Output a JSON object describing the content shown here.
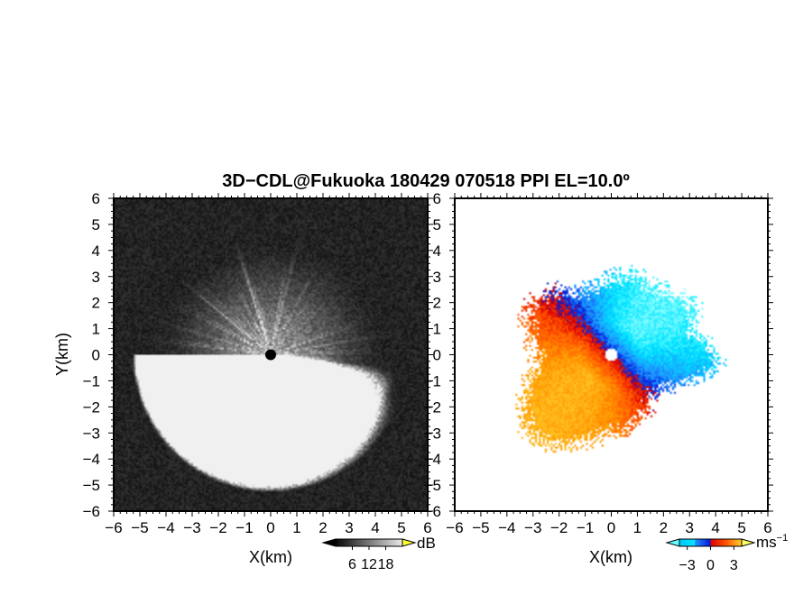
{
  "title": "3D−CDL@Fukuoka 180429 070518 PPI EL=10.0º",
  "chart_data": [
    {
      "type": "heatmap",
      "panel": "reflectivity",
      "xlabel": "X(km)",
      "ylabel": "Y(km)",
      "xlim": [
        -6,
        6
      ],
      "ylim": [
        -6,
        6
      ],
      "xticks": [
        "−6",
        "−5",
        "−4",
        "−3",
        "−2",
        "−1",
        "0",
        "1",
        "2",
        "3",
        "4",
        "5",
        "6"
      ],
      "yticks": [
        "−6",
        "−5",
        "−4",
        "−3",
        "−2",
        "−1",
        "0",
        "1",
        "2",
        "3",
        "4",
        "5",
        "6"
      ],
      "colorbar": {
        "unit": "dB",
        "ticks": [
          "6",
          "12",
          "18"
        ],
        "tick_values": [
          6,
          12,
          18
        ],
        "range": [
          0,
          24
        ],
        "colormap": "greyscale",
        "extend_low_color": "#000000",
        "extend_high_color": "#ffff33"
      },
      "field": {
        "background_color": "#141414",
        "peak_color": "#f0f0f0",
        "center_marker_color": "#000000",
        "echo_radius_km": 4.2
      }
    },
    {
      "type": "heatmap",
      "panel": "doppler_velocity",
      "xlabel": "X(km)",
      "ylabel": "",
      "xlim": [
        -6,
        6
      ],
      "ylim": [
        -6,
        6
      ],
      "xticks": [
        "−6",
        "−5",
        "−4",
        "−3",
        "−2",
        "−1",
        "0",
        "1",
        "2",
        "3",
        "4",
        "5",
        "6"
      ],
      "yticks": [
        "−6",
        "−5",
        "−4",
        "−3",
        "−2",
        "−1",
        "0",
        "1",
        "2",
        "3",
        "4",
        "5",
        "6"
      ],
      "colorbar": {
        "unit": "ms",
        "unit_superscript": "−1",
        "ticks": [
          "−3",
          "0",
          "3"
        ],
        "tick_values": [
          -3,
          0,
          3
        ],
        "range": [
          -4,
          4
        ],
        "colors": [
          "#00e5ff",
          "#1e90ff",
          "#0000dd",
          "#dd0000",
          "#ff6600",
          "#ffaa00"
        ],
        "extend_low_color": "#66ffff",
        "extend_high_color": "#ffff66"
      },
      "field": {
        "negative_color": "#1e90ff",
        "positive_color": "#ff5500",
        "echo_region": "irregular patch, x from −3.5 to 4 km, y from −3.7 to 3.9 km"
      }
    }
  ]
}
